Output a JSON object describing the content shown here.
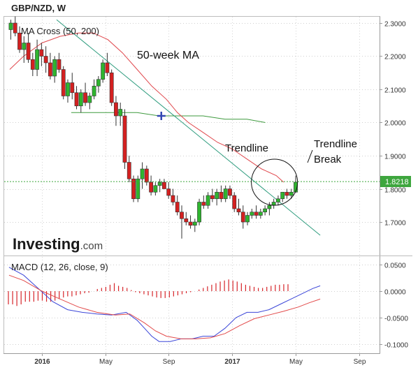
{
  "chart_data": [
    {
      "type": "candlestick",
      "title": "GBP/NZD, W",
      "study_label": "MA Cross (50, 200)",
      "watermark": {
        "brand": "Investing",
        "suffix": ".com"
      },
      "ylim": [
        1.62,
        2.33
      ],
      "y_ticks": [
        "2.3000",
        "2.2000",
        "2.1000",
        "2.0000",
        "1.9000",
        "1.8000",
        "1.7000"
      ],
      "y_tick_values": [
        2.3,
        2.2,
        2.1,
        2.0,
        1.9,
        1.8,
        1.7
      ],
      "last_price": {
        "label": "1.8218",
        "value": 1.8218,
        "color": "#3ea63e"
      },
      "annotations": {
        "ma_label": "50-week MA",
        "trendline_label": "Trendline",
        "break_line1": "Trendline",
        "break_line2": "Break"
      },
      "x_ticks": [
        {
          "label": "2016",
          "bold": true,
          "t": 0.0
        },
        {
          "label": "May",
          "bold": false,
          "t": 17.3
        },
        {
          "label": "Sep",
          "bold": false,
          "t": 34.6
        },
        {
          "label": "2017",
          "bold": true,
          "t": 52.0
        },
        {
          "label": "May",
          "bold": false,
          "t": 69.3
        },
        {
          "label": "Sep",
          "bold": false,
          "t": 86.6
        }
      ],
      "x_range": [
        -9.5,
        94.5
      ],
      "candles": [
        {
          "o": 2.28,
          "h": 2.31,
          "l": 2.25,
          "c": 2.3
        },
        {
          "o": 2.3,
          "h": 2.32,
          "l": 2.26,
          "c": 2.27
        },
        {
          "o": 2.27,
          "h": 2.29,
          "l": 2.21,
          "c": 2.22
        },
        {
          "o": 2.22,
          "h": 2.26,
          "l": 2.18,
          "c": 2.24
        },
        {
          "o": 2.24,
          "h": 2.27,
          "l": 2.18,
          "c": 2.19
        },
        {
          "o": 2.19,
          "h": 2.21,
          "l": 2.14,
          "c": 2.16
        },
        {
          "o": 2.16,
          "h": 2.25,
          "l": 2.14,
          "c": 2.22
        },
        {
          "o": 2.22,
          "h": 2.24,
          "l": 2.17,
          "c": 2.2
        },
        {
          "o": 2.2,
          "h": 2.23,
          "l": 2.15,
          "c": 2.18
        },
        {
          "o": 2.18,
          "h": 2.21,
          "l": 2.13,
          "c": 2.14
        },
        {
          "o": 2.14,
          "h": 2.2,
          "l": 2.12,
          "c": 2.19
        },
        {
          "o": 2.19,
          "h": 2.21,
          "l": 2.15,
          "c": 2.16
        },
        {
          "o": 2.16,
          "h": 2.17,
          "l": 2.07,
          "c": 2.08
        },
        {
          "o": 2.08,
          "h": 2.13,
          "l": 2.06,
          "c": 2.12
        },
        {
          "o": 2.12,
          "h": 2.15,
          "l": 2.07,
          "c": 2.09
        },
        {
          "o": 2.09,
          "h": 2.11,
          "l": 2.04,
          "c": 2.05
        },
        {
          "o": 2.05,
          "h": 2.1,
          "l": 2.03,
          "c": 2.09
        },
        {
          "o": 2.09,
          "h": 2.12,
          "l": 2.05,
          "c": 2.06
        },
        {
          "o": 2.06,
          "h": 2.09,
          "l": 2.04,
          "c": 2.08
        },
        {
          "o": 2.08,
          "h": 2.13,
          "l": 2.07,
          "c": 2.11
        },
        {
          "o": 2.11,
          "h": 2.14,
          "l": 2.09,
          "c": 2.13
        },
        {
          "o": 2.13,
          "h": 2.19,
          "l": 2.12,
          "c": 2.18
        },
        {
          "o": 2.18,
          "h": 2.21,
          "l": 2.14,
          "c": 2.15
        },
        {
          "o": 2.15,
          "h": 2.16,
          "l": 2.05,
          "c": 2.06
        },
        {
          "o": 2.06,
          "h": 2.08,
          "l": 1.99,
          "c": 2.02
        },
        {
          "o": 2.02,
          "h": 2.06,
          "l": 1.99,
          "c": 2.04
        },
        {
          "o": 2.02,
          "h": 2.04,
          "l": 1.86,
          "c": 1.88
        },
        {
          "o": 1.88,
          "h": 1.9,
          "l": 1.82,
          "c": 1.83
        },
        {
          "o": 1.83,
          "h": 1.84,
          "l": 1.76,
          "c": 1.77
        },
        {
          "o": 1.77,
          "h": 1.84,
          "l": 1.76,
          "c": 1.83
        },
        {
          "o": 1.83,
          "h": 1.88,
          "l": 1.8,
          "c": 1.86
        },
        {
          "o": 1.86,
          "h": 1.87,
          "l": 1.81,
          "c": 1.82
        },
        {
          "o": 1.82,
          "h": 1.84,
          "l": 1.78,
          "c": 1.79
        },
        {
          "o": 1.79,
          "h": 1.82,
          "l": 1.78,
          "c": 1.81
        },
        {
          "o": 1.81,
          "h": 1.83,
          "l": 1.79,
          "c": 1.82
        },
        {
          "o": 1.82,
          "h": 1.83,
          "l": 1.8,
          "c": 1.8
        },
        {
          "o": 1.8,
          "h": 1.82,
          "l": 1.77,
          "c": 1.78
        },
        {
          "o": 1.78,
          "h": 1.8,
          "l": 1.75,
          "c": 1.76
        },
        {
          "o": 1.76,
          "h": 1.78,
          "l": 1.72,
          "c": 1.73
        },
        {
          "o": 1.73,
          "h": 1.75,
          "l": 1.65,
          "c": 1.71
        },
        {
          "o": 1.71,
          "h": 1.73,
          "l": 1.69,
          "c": 1.7
        },
        {
          "o": 1.7,
          "h": 1.72,
          "l": 1.68,
          "c": 1.69
        },
        {
          "o": 1.69,
          "h": 1.71,
          "l": 1.67,
          "c": 1.7
        },
        {
          "o": 1.7,
          "h": 1.77,
          "l": 1.69,
          "c": 1.76
        },
        {
          "o": 1.76,
          "h": 1.78,
          "l": 1.74,
          "c": 1.75
        },
        {
          "o": 1.75,
          "h": 1.79,
          "l": 1.74,
          "c": 1.78
        },
        {
          "o": 1.78,
          "h": 1.8,
          "l": 1.76,
          "c": 1.77
        },
        {
          "o": 1.77,
          "h": 1.8,
          "l": 1.75,
          "c": 1.79
        },
        {
          "o": 1.79,
          "h": 1.81,
          "l": 1.76,
          "c": 1.77
        },
        {
          "o": 1.77,
          "h": 1.81,
          "l": 1.76,
          "c": 1.8
        },
        {
          "o": 1.8,
          "h": 1.81,
          "l": 1.77,
          "c": 1.78
        },
        {
          "o": 1.78,
          "h": 1.79,
          "l": 1.73,
          "c": 1.74
        },
        {
          "o": 1.74,
          "h": 1.77,
          "l": 1.72,
          "c": 1.73
        },
        {
          "o": 1.73,
          "h": 1.75,
          "l": 1.68,
          "c": 1.7
        },
        {
          "o": 1.7,
          "h": 1.73,
          "l": 1.69,
          "c": 1.72
        },
        {
          "o": 1.72,
          "h": 1.74,
          "l": 1.71,
          "c": 1.73
        },
        {
          "o": 1.73,
          "h": 1.75,
          "l": 1.71,
          "c": 1.72
        },
        {
          "o": 1.72,
          "h": 1.74,
          "l": 1.71,
          "c": 1.73
        },
        {
          "o": 1.73,
          "h": 1.75,
          "l": 1.72,
          "c": 1.74
        },
        {
          "o": 1.74,
          "h": 1.76,
          "l": 1.72,
          "c": 1.75
        },
        {
          "o": 1.75,
          "h": 1.77,
          "l": 1.74,
          "c": 1.76
        },
        {
          "o": 1.76,
          "h": 1.78,
          "l": 1.75,
          "c": 1.77
        },
        {
          "o": 1.77,
          "h": 1.79,
          "l": 1.76,
          "c": 1.79
        },
        {
          "o": 1.79,
          "h": 1.8,
          "l": 1.77,
          "c": 1.78
        },
        {
          "o": 1.78,
          "h": 1.8,
          "l": 1.77,
          "c": 1.79
        },
        {
          "o": 1.79,
          "h": 1.84,
          "l": 1.79,
          "c": 1.82
        }
      ],
      "ma50": [
        [
          -8.8,
          2.16
        ],
        [
          -5,
          2.2
        ],
        [
          0,
          2.24
        ],
        [
          5,
          2.26
        ],
        [
          10,
          2.27
        ],
        [
          14,
          2.27
        ],
        [
          18,
          2.25
        ],
        [
          22,
          2.21
        ],
        [
          26,
          2.16
        ],
        [
          30,
          2.11
        ],
        [
          34,
          2.07
        ],
        [
          37,
          2.03
        ],
        [
          40,
          2.0
        ],
        [
          44,
          1.97
        ],
        [
          48,
          1.94
        ],
        [
          52,
          1.92
        ],
        [
          56,
          1.89
        ],
        [
          60,
          1.86
        ],
        [
          64,
          1.84
        ],
        [
          66,
          1.82
        ]
      ],
      "ma200": [
        [
          8,
          2.03
        ],
        [
          14,
          2.03
        ],
        [
          20,
          2.03
        ],
        [
          26,
          2.03
        ],
        [
          32,
          2.02
        ],
        [
          38,
          2.02
        ],
        [
          44,
          2.02
        ],
        [
          50,
          2.01
        ],
        [
          56,
          2.01
        ],
        [
          61,
          2.0
        ]
      ],
      "trendline": [
        [
          4,
          2.31
        ],
        [
          76,
          1.66
        ]
      ],
      "cross_point": [
        32.6,
        2.02
      ],
      "break_circle": {
        "t": 63.5,
        "v": 1.82
      }
    },
    {
      "type": "line",
      "title": "MACD (12, 26, close, 9)",
      "ylim": [
        -0.11,
        0.06
      ],
      "y_ticks": [
        "0.0500",
        "0.0000",
        "-0.0500",
        "-0.1000"
      ],
      "y_tick_values": [
        0.05,
        0.0,
        -0.05,
        -0.1
      ],
      "series": [
        {
          "role": "macd",
          "color": "#3b46d8",
          "points": [
            [
              -9,
              0.045
            ],
            [
              -5,
              0.03
            ],
            [
              -1,
              0.005
            ],
            [
              3,
              -0.02
            ],
            [
              7,
              -0.035
            ],
            [
              11,
              -0.04
            ],
            [
              15,
              -0.043
            ],
            [
              19,
              -0.045
            ],
            [
              23,
              -0.04
            ],
            [
              26,
              -0.055
            ],
            [
              28,
              -0.07
            ],
            [
              30,
              -0.085
            ],
            [
              32,
              -0.095
            ],
            [
              35,
              -0.095
            ],
            [
              38,
              -0.09
            ],
            [
              41,
              -0.09
            ],
            [
              44,
              -0.085
            ],
            [
              47,
              -0.085
            ],
            [
              50,
              -0.07
            ],
            [
              53,
              -0.05
            ],
            [
              56,
              -0.04
            ],
            [
              59,
              -0.04
            ],
            [
              62,
              -0.035
            ],
            [
              65,
              -0.025
            ],
            [
              68,
              -0.015
            ],
            [
              71,
              -0.005
            ],
            [
              74,
              0.005
            ],
            [
              76,
              0.01
            ]
          ]
        },
        {
          "role": "signal",
          "color": "#e24a4a",
          "points": [
            [
              -9,
              0.03
            ],
            [
              -5,
              0.02
            ],
            [
              0,
              0.0
            ],
            [
              5,
              -0.015
            ],
            [
              10,
              -0.03
            ],
            [
              15,
              -0.04
            ],
            [
              20,
              -0.045
            ],
            [
              24,
              -0.043
            ],
            [
              28,
              -0.06
            ],
            [
              31,
              -0.075
            ],
            [
              34,
              -0.085
            ],
            [
              38,
              -0.09
            ],
            [
              42,
              -0.09
            ],
            [
              46,
              -0.088
            ],
            [
              50,
              -0.08
            ],
            [
              54,
              -0.065
            ],
            [
              58,
              -0.052
            ],
            [
              62,
              -0.045
            ],
            [
              66,
              -0.038
            ],
            [
              70,
              -0.03
            ],
            [
              73,
              -0.022
            ],
            [
              76,
              -0.015
            ]
          ]
        }
      ],
      "histogram": [
        -0.025,
        -0.025,
        -0.028,
        -0.025,
        -0.02,
        -0.02,
        -0.02,
        -0.018,
        -0.018,
        -0.02,
        -0.02,
        -0.018,
        -0.015,
        -0.012,
        -0.01,
        -0.01,
        -0.008,
        -0.006,
        -0.004,
        -0.003,
        0.0,
        0.004,
        0.006,
        0.008,
        0.012,
        0.015,
        0.01,
        0.008,
        0.006,
        0.002,
        -0.002,
        -0.004,
        -0.006,
        -0.008,
        -0.01,
        -0.012,
        -0.013,
        -0.013,
        -0.012,
        -0.01,
        -0.008,
        -0.006,
        -0.004,
        -0.002,
        0.0,
        0.003,
        0.006,
        0.009,
        0.012,
        0.015,
        0.018,
        0.02,
        0.022,
        0.02,
        0.018,
        0.015,
        0.012,
        0.01,
        0.008,
        0.006,
        0.006,
        0.008,
        0.01,
        0.012,
        0.012,
        0.013,
        0.013
      ]
    }
  ]
}
